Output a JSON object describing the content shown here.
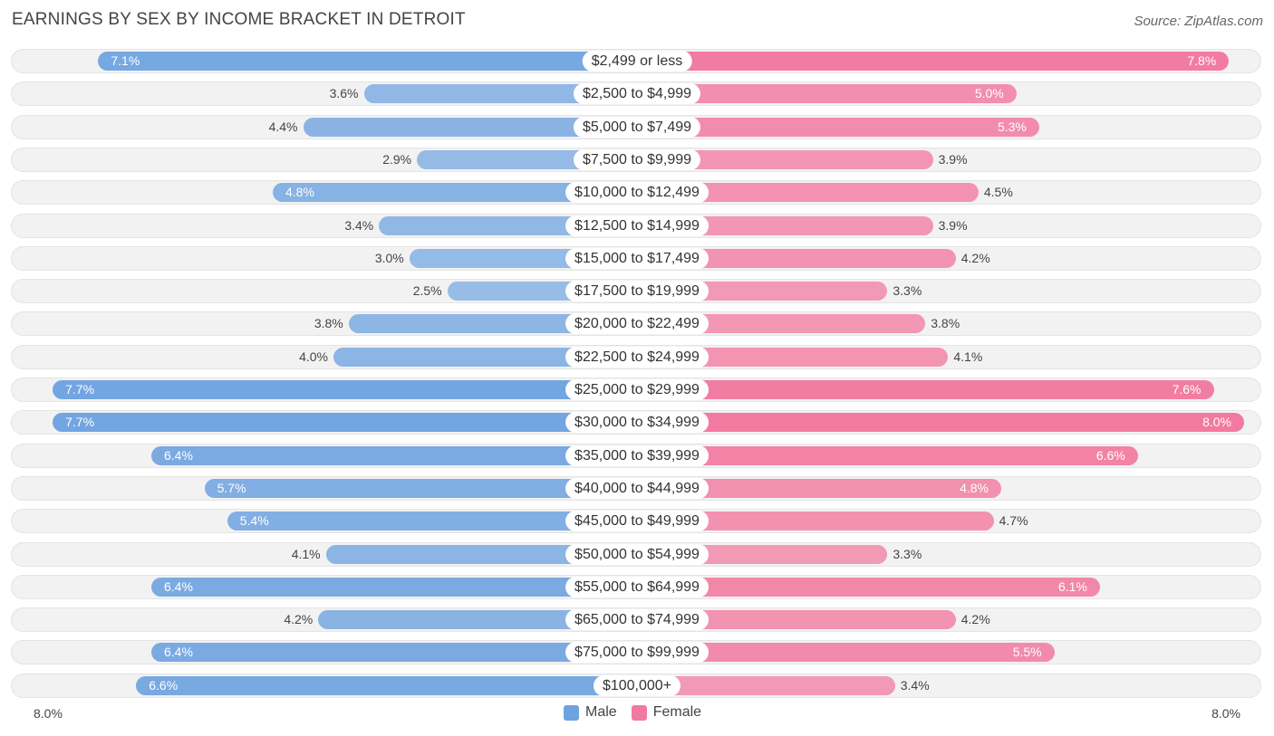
{
  "title": "EARNINGS BY SEX BY INCOME BRACKET IN DETROIT",
  "source": "Source: ZipAtlas.com",
  "colors": {
    "male": "#6fa3e0",
    "female": "#f27aa0"
  },
  "chart_data": {
    "type": "bar",
    "orientation": "horizontal-diverging",
    "title": "EARNINGS BY SEX BY INCOME BRACKET IN DETROIT",
    "categories": [
      "$2,499 or less",
      "$2,500 to $4,999",
      "$5,000 to $7,499",
      "$7,500 to $9,999",
      "$10,000 to $12,499",
      "$12,500 to $14,999",
      "$15,000 to $17,499",
      "$17,500 to $19,999",
      "$20,000 to $22,499",
      "$22,500 to $24,999",
      "$25,000 to $29,999",
      "$30,000 to $34,999",
      "$35,000 to $39,999",
      "$40,000 to $44,999",
      "$45,000 to $49,999",
      "$50,000 to $54,999",
      "$55,000 to $64,999",
      "$65,000 to $74,999",
      "$75,000 to $99,999",
      "$100,000+"
    ],
    "series": [
      {
        "name": "Male",
        "values": [
          7.1,
          3.6,
          4.4,
          2.9,
          4.8,
          3.4,
          3.0,
          2.5,
          3.8,
          4.0,
          7.7,
          7.7,
          6.4,
          5.7,
          5.4,
          4.1,
          6.4,
          4.2,
          6.4,
          6.6
        ]
      },
      {
        "name": "Female",
        "values": [
          7.8,
          5.0,
          5.3,
          3.9,
          4.5,
          3.9,
          4.2,
          3.3,
          3.8,
          4.1,
          7.6,
          8.0,
          6.6,
          4.8,
          4.7,
          3.3,
          6.1,
          4.2,
          5.5,
          3.4
        ]
      }
    ],
    "value_labels": {
      "male": [
        "7.1%",
        "3.6%",
        "4.4%",
        "2.9%",
        "4.8%",
        "3.4%",
        "3.0%",
        "2.5%",
        "3.8%",
        "4.0%",
        "7.7%",
        "7.7%",
        "6.4%",
        "5.7%",
        "5.4%",
        "4.1%",
        "6.4%",
        "4.2%",
        "6.4%",
        "6.6%"
      ],
      "female": [
        "7.8%",
        "5.0%",
        "5.3%",
        "3.9%",
        "4.5%",
        "3.9%",
        "4.2%",
        "3.3%",
        "3.8%",
        "4.1%",
        "7.6%",
        "8.0%",
        "6.6%",
        "4.8%",
        "4.7%",
        "3.3%",
        "6.1%",
        "4.2%",
        "5.5%",
        "3.4%"
      ]
    },
    "xlim": [
      0,
      8.0
    ],
    "axis_labels": {
      "left": "8.0%",
      "right": "8.0%"
    },
    "legend": [
      "Male",
      "Female"
    ],
    "legend_position": "bottom-center"
  }
}
